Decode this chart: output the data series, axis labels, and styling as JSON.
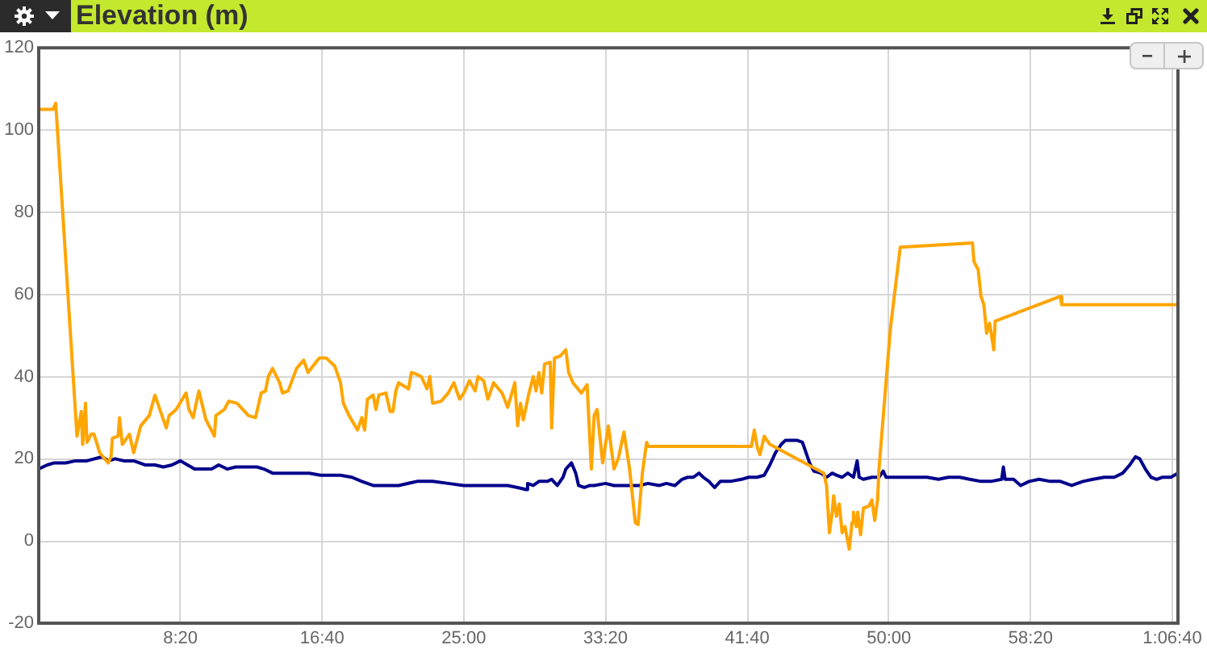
{
  "chart_data": {
    "type": "line",
    "title": "Elevation (m)",
    "xlim": [
      0,
      4020
    ],
    "xticks": [
      {
        "value": 500,
        "label": "8:20"
      },
      {
        "value": 1000,
        "label": "16:40"
      },
      {
        "value": 1500,
        "label": "25:00"
      },
      {
        "value": 2000,
        "label": "33:20"
      },
      {
        "value": 2500,
        "label": "41:40"
      },
      {
        "value": 3000,
        "label": "50:00"
      },
      {
        "value": 3500,
        "label": "58:20"
      },
      {
        "value": 4000,
        "label": "1:06:40"
      }
    ],
    "ylim": [
      -20,
      120
    ],
    "yticks": [
      -20,
      0,
      20,
      40,
      60,
      80,
      100,
      120
    ],
    "grid": true,
    "legend": false,
    "marker": "none",
    "line_style": "solid",
    "series": [
      {
        "color": "#ffa500",
        "x": [
          0,
          50,
          60,
          135,
          150,
          155,
          165,
          170,
          185,
          195,
          215,
          245,
          255,
          260,
          280,
          285,
          295,
          320,
          335,
          360,
          390,
          410,
          430,
          450,
          460,
          485,
          520,
          530,
          545,
          565,
          590,
          620,
          625,
          655,
          670,
          700,
          740,
          765,
          785,
          800,
          810,
          825,
          850,
          860,
          880,
          910,
          935,
          950,
          990,
          1015,
          1045,
          1065,
          1075,
          1095,
          1125,
          1140,
          1150,
          1160,
          1180,
          1190,
          1200,
          1225,
          1240,
          1250,
          1260,
          1270,
          1305,
          1315,
          1335,
          1350,
          1370,
          1380,
          1390,
          1420,
          1445,
          1465,
          1485,
          1500,
          1520,
          1540,
          1550,
          1570,
          1585,
          1605,
          1635,
          1655,
          1680,
          1690,
          1700,
          1710,
          1730,
          1745,
          1755,
          1765,
          1775,
          1785,
          1805,
          1810,
          1820,
          1840,
          1860,
          1870,
          1885,
          1915,
          1935,
          1950,
          1960,
          1970,
          1990,
          2010,
          2030,
          2045,
          2065,
          2085,
          2105,
          2115,
          2130,
          2145,
          2150,
          2515,
          2525,
          2535,
          2545,
          2560,
          2580,
          2770,
          2780,
          2790,
          2800,
          2805,
          2815,
          2825,
          2835,
          2845,
          2860,
          2870,
          2875,
          2885,
          2890,
          2900,
          2910,
          2930,
          2940,
          2950,
          2960,
          2965,
          3005,
          3040,
          3295,
          3300,
          3315,
          3325,
          3335,
          3345,
          3355,
          3360,
          3370,
          3375,
          3605,
          3610,
          4020
        ],
        "values": [
          105,
          105,
          106.5,
          25.5,
          31.5,
          23.5,
          33.5,
          24,
          26,
          26,
          21.5,
          19,
          20.5,
          25,
          25.5,
          30,
          23.5,
          26,
          21.5,
          28,
          30.5,
          35.5,
          31.5,
          27.5,
          30.5,
          32,
          36,
          32,
          30,
          36.5,
          29.5,
          25.5,
          30.5,
          32,
          34,
          33.5,
          30.5,
          30,
          36,
          36.5,
          40,
          42,
          38.5,
          36,
          36.5,
          42,
          44,
          41,
          44.5,
          44.5,
          42.5,
          38.5,
          33.5,
          30.5,
          27,
          30,
          27,
          34.5,
          35.5,
          32,
          35.5,
          36,
          31.5,
          31.5,
          36.5,
          38.5,
          37,
          41,
          40.5,
          40,
          37,
          40,
          33.5,
          34,
          36,
          38.5,
          34.5,
          36,
          39,
          36.5,
          40,
          39,
          34.5,
          38.5,
          36,
          32.5,
          38.5,
          28,
          33.5,
          29.5,
          36,
          40,
          36.5,
          41,
          36,
          43,
          43.5,
          27.5,
          44.5,
          45,
          46.5,
          41,
          38.5,
          36,
          38,
          17.5,
          30.5,
          32,
          19,
          28,
          17.5,
          20,
          26.5,
          17.5,
          4.5,
          4,
          16.5,
          24,
          23,
          23,
          27,
          23,
          21,
          25.5,
          23.5,
          16.5,
          13.5,
          2,
          7,
          11,
          6,
          9,
          2,
          3.5,
          -2,
          4.5,
          7,
          3.5,
          7,
          1.5,
          8,
          8.5,
          10,
          5,
          10,
          17.5,
          51.5,
          71.5,
          72.5,
          68,
          66,
          59.5,
          57.5,
          50.5,
          53,
          51,
          46.5,
          53.5,
          59.5,
          57.5,
          57.5
        ]
      },
      {
        "color": "#00008b",
        "x": [
          0,
          30,
          55,
          95,
          130,
          170,
          225,
          245,
          270,
          300,
          335,
          375,
          410,
          440,
          470,
          500,
          525,
          550,
          580,
          610,
          635,
          665,
          695,
          730,
          770,
          795,
          825,
          850,
          880,
          920,
          955,
          995,
          1030,
          1065,
          1105,
          1140,
          1180,
          1215,
          1270,
          1335,
          1390,
          1445,
          1500,
          1560,
          1615,
          1655,
          1690,
          1720,
          1725,
          1745,
          1765,
          1795,
          1810,
          1830,
          1850,
          1860,
          1880,
          1895,
          1905,
          1925,
          1945,
          1960,
          2000,
          2030,
          2055,
          2085,
          2120,
          2150,
          2190,
          2215,
          2245,
          2270,
          2290,
          2310,
          2330,
          2345,
          2365,
          2385,
          2405,
          2440,
          2480,
          2505,
          2535,
          2560,
          2580,
          2600,
          2620,
          2635,
          2655,
          2675,
          2695,
          2705,
          2720,
          2735,
          2760,
          2780,
          2800,
          2815,
          2835,
          2855,
          2875,
          2888,
          2895,
          2910,
          2940,
          2965,
          2980,
          2990,
          3025,
          3060,
          3100,
          3135,
          3175,
          3210,
          3250,
          3285,
          3325,
          3360,
          3398,
          3404,
          3410,
          3440,
          3465,
          3495,
          3530,
          3570,
          3605,
          3645,
          3685,
          3720,
          3760,
          3795,
          3825,
          3850,
          3870,
          3885,
          3905,
          3925,
          3945,
          3965,
          3995,
          4020
        ],
        "values": [
          17.5,
          18.5,
          19,
          19,
          19.5,
          19.5,
          20.5,
          19.5,
          20,
          19.5,
          19.5,
          18.5,
          18.5,
          18,
          18.5,
          19.5,
          18.5,
          17.5,
          17.5,
          17.5,
          18.5,
          17.5,
          18,
          18,
          18,
          17.5,
          16.5,
          16.5,
          16.5,
          16.5,
          16.5,
          16,
          16,
          16,
          15.5,
          14.5,
          13.5,
          13.5,
          13.5,
          14.5,
          14.5,
          14,
          13.5,
          13.5,
          13.5,
          13.5,
          13,
          12.5,
          14,
          13.5,
          14.5,
          14.5,
          15,
          13.5,
          15.5,
          17.5,
          19,
          16.5,
          13.5,
          13,
          13.5,
          13.5,
          14,
          13.5,
          13.5,
          13.5,
          13.5,
          14,
          13.5,
          14,
          13.5,
          15,
          15.5,
          15.5,
          16.5,
          15.5,
          14.5,
          13,
          14.5,
          14.5,
          15,
          15.5,
          15.5,
          16,
          18.5,
          21.5,
          23.5,
          24.5,
          24.5,
          24.5,
          24,
          22,
          19,
          17,
          16.5,
          15.5,
          16.5,
          16,
          15.5,
          16.5,
          15.5,
          19.5,
          15.5,
          15,
          15.5,
          15.5,
          17,
          15.5,
          15.5,
          15.5,
          15.5,
          15.5,
          15,
          15.5,
          15.5,
          15,
          14.5,
          14.5,
          15,
          18,
          15,
          15,
          13.5,
          14.5,
          15,
          14.5,
          14.5,
          13.5,
          14.5,
          15,
          15.5,
          15.5,
          16.5,
          18.5,
          20.5,
          20,
          17.5,
          15.5,
          15,
          15.5,
          15.5,
          16.5
        ]
      }
    ]
  }
}
